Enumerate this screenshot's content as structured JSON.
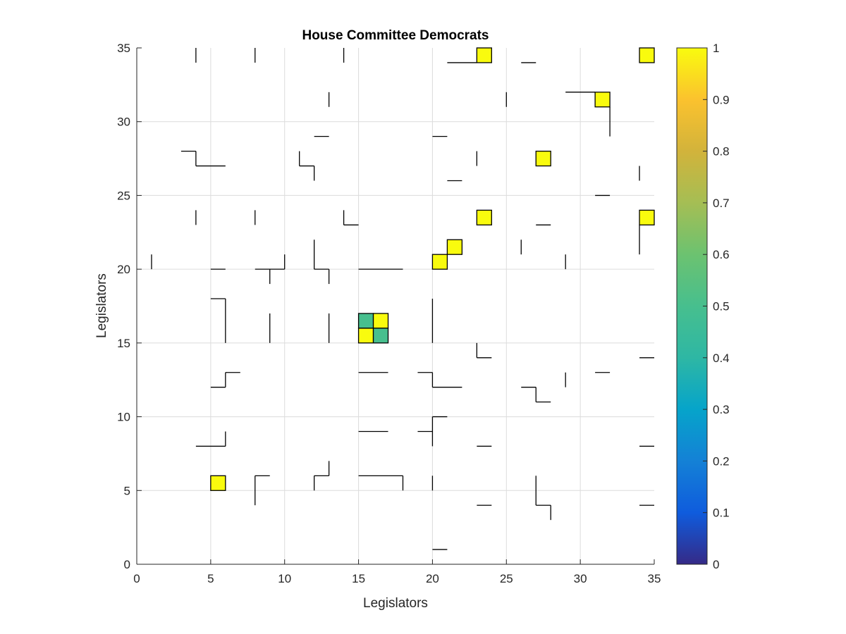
{
  "chart_data": {
    "type": "heatmap",
    "title": "House Committee Democrats",
    "xlabel": "Legislators",
    "ylabel": "Legislators",
    "xlim": [
      0,
      35
    ],
    "ylim": [
      0,
      35
    ],
    "x_ticks": [
      0,
      5,
      10,
      15,
      20,
      25,
      30,
      35
    ],
    "y_ticks": [
      0,
      5,
      10,
      15,
      20,
      25,
      30,
      35
    ],
    "grid": true,
    "colorbar": {
      "min": 0,
      "max": 1,
      "ticks": [
        0,
        0.1,
        0.2,
        0.3,
        0.4,
        0.5,
        0.6,
        0.7,
        0.8,
        0.9,
        1
      ],
      "colormap": "parula"
    },
    "cells": [
      {
        "x": 23,
        "y": 34,
        "value": 1
      },
      {
        "x": 34,
        "y": 34,
        "value": 1
      },
      {
        "x": 31,
        "y": 31,
        "value": 1
      },
      {
        "x": 27,
        "y": 27,
        "value": 1
      },
      {
        "x": 23,
        "y": 23,
        "value": 1
      },
      {
        "x": 34,
        "y": 23,
        "value": 1
      },
      {
        "x": 21,
        "y": 21,
        "value": 1
      },
      {
        "x": 20,
        "y": 20,
        "value": 1
      },
      {
        "x": 15,
        "y": 16,
        "value": 0.5
      },
      {
        "x": 16,
        "y": 16,
        "value": 1
      },
      {
        "x": 15,
        "y": 15,
        "value": 1
      },
      {
        "x": 16,
        "y": 15,
        "value": 0.5
      },
      {
        "x": 5,
        "y": 5,
        "value": 1
      }
    ],
    "zero_value_edges": [
      [
        [
          4,
          34
        ],
        [
          4,
          35
        ]
      ],
      [
        [
          8,
          34
        ],
        [
          8,
          35
        ]
      ],
      [
        [
          14,
          34
        ],
        [
          14,
          35
        ]
      ],
      [
        [
          21,
          34
        ],
        [
          23,
          34
        ]
      ],
      [
        [
          26,
          34
        ],
        [
          27,
          34
        ]
      ],
      [
        [
          13,
          31
        ],
        [
          13,
          32
        ]
      ],
      [
        [
          25,
          31
        ],
        [
          25,
          32
        ]
      ],
      [
        [
          29,
          32
        ],
        [
          31,
          32
        ]
      ],
      [
        [
          32,
          29
        ],
        [
          32,
          31
        ]
      ],
      [
        [
          12,
          29
        ],
        [
          13,
          29
        ]
      ],
      [
        [
          20,
          29
        ],
        [
          21,
          29
        ]
      ],
      [
        [
          3,
          28
        ],
        [
          4,
          28
        ]
      ],
      [
        [
          4,
          27
        ],
        [
          4,
          28
        ]
      ],
      [
        [
          4,
          27
        ],
        [
          6,
          27
        ]
      ],
      [
        [
          11,
          27
        ],
        [
          11,
          28
        ]
      ],
      [
        [
          11,
          27
        ],
        [
          12,
          27
        ]
      ],
      [
        [
          12,
          26
        ],
        [
          12,
          27
        ]
      ],
      [
        [
          23,
          27
        ],
        [
          23,
          28
        ]
      ],
      [
        [
          21,
          26
        ],
        [
          22,
          26
        ]
      ],
      [
        [
          34,
          26
        ],
        [
          34,
          27
        ]
      ],
      [
        [
          31,
          25
        ],
        [
          32,
          25
        ]
      ],
      [
        [
          4,
          23
        ],
        [
          4,
          24
        ]
      ],
      [
        [
          8,
          23
        ],
        [
          8,
          24
        ]
      ],
      [
        [
          14,
          23
        ],
        [
          14,
          24
        ]
      ],
      [
        [
          14,
          23
        ],
        [
          15,
          23
        ]
      ],
      [
        [
          27,
          23
        ],
        [
          28,
          23
        ]
      ],
      [
        [
          34,
          21
        ],
        [
          34,
          23
        ]
      ],
      [
        [
          26,
          21
        ],
        [
          26,
          22
        ]
      ],
      [
        [
          1,
          20
        ],
        [
          1,
          21
        ]
      ],
      [
        [
          5,
          20
        ],
        [
          6,
          20
        ]
      ],
      [
        [
          8,
          20
        ],
        [
          10,
          20
        ]
      ],
      [
        [
          10,
          20
        ],
        [
          10,
          21
        ]
      ],
      [
        [
          9,
          19
        ],
        [
          9,
          20
        ]
      ],
      [
        [
          12,
          20
        ],
        [
          12,
          22
        ]
      ],
      [
        [
          12,
          20
        ],
        [
          13,
          20
        ]
      ],
      [
        [
          13,
          19
        ],
        [
          13,
          20
        ]
      ],
      [
        [
          15,
          20
        ],
        [
          18,
          20
        ]
      ],
      [
        [
          29,
          20
        ],
        [
          29,
          21
        ]
      ],
      [
        [
          5,
          18
        ],
        [
          6,
          18
        ]
      ],
      [
        [
          6,
          15
        ],
        [
          6,
          18
        ]
      ],
      [
        [
          9,
          15
        ],
        [
          9,
          17
        ]
      ],
      [
        [
          13,
          15
        ],
        [
          13,
          17
        ]
      ],
      [
        [
          20,
          15
        ],
        [
          20,
          18
        ]
      ],
      [
        [
          23,
          14
        ],
        [
          23,
          15
        ]
      ],
      [
        [
          23,
          14
        ],
        [
          24,
          14
        ]
      ],
      [
        [
          34,
          14
        ],
        [
          35,
          14
        ]
      ],
      [
        [
          5,
          12
        ],
        [
          6,
          12
        ]
      ],
      [
        [
          6,
          12
        ],
        [
          6,
          13
        ]
      ],
      [
        [
          6,
          13
        ],
        [
          7,
          13
        ]
      ],
      [
        [
          15,
          13
        ],
        [
          17,
          13
        ]
      ],
      [
        [
          19,
          13
        ],
        [
          20,
          13
        ]
      ],
      [
        [
          20,
          12
        ],
        [
          20,
          13
        ]
      ],
      [
        [
          20,
          12
        ],
        [
          22,
          12
        ]
      ],
      [
        [
          26,
          12
        ],
        [
          27,
          12
        ]
      ],
      [
        [
          27,
          11
        ],
        [
          27,
          12
        ]
      ],
      [
        [
          27,
          11
        ],
        [
          28,
          11
        ]
      ],
      [
        [
          29,
          12
        ],
        [
          29,
          13
        ]
      ],
      [
        [
          31,
          13
        ],
        [
          32,
          13
        ]
      ],
      [
        [
          15,
          9
        ],
        [
          17,
          9
        ]
      ],
      [
        [
          19,
          9
        ],
        [
          20,
          9
        ]
      ],
      [
        [
          20,
          8
        ],
        [
          20,
          10
        ]
      ],
      [
        [
          20,
          10
        ],
        [
          21,
          10
        ]
      ],
      [
        [
          4,
          8
        ],
        [
          6,
          8
        ]
      ],
      [
        [
          6,
          8
        ],
        [
          6,
          9
        ]
      ],
      [
        [
          23,
          8
        ],
        [
          24,
          8
        ]
      ],
      [
        [
          34,
          8
        ],
        [
          35,
          8
        ]
      ],
      [
        [
          8,
          4
        ],
        [
          8,
          6
        ]
      ],
      [
        [
          8,
          6
        ],
        [
          9,
          6
        ]
      ],
      [
        [
          12,
          5
        ],
        [
          12,
          6
        ]
      ],
      [
        [
          12,
          6
        ],
        [
          13,
          6
        ]
      ],
      [
        [
          13,
          6
        ],
        [
          13,
          7
        ]
      ],
      [
        [
          15,
          6
        ],
        [
          18,
          6
        ]
      ],
      [
        [
          18,
          5
        ],
        [
          18,
          6
        ]
      ],
      [
        [
          20,
          5
        ],
        [
          20,
          6
        ]
      ],
      [
        [
          27,
          4
        ],
        [
          27,
          6
        ]
      ],
      [
        [
          27,
          4
        ],
        [
          28,
          4
        ]
      ],
      [
        [
          28,
          3
        ],
        [
          28,
          4
        ]
      ],
      [
        [
          23,
          4
        ],
        [
          24,
          4
        ]
      ],
      [
        [
          34,
          4
        ],
        [
          35,
          4
        ]
      ],
      [
        [
          20,
          1
        ],
        [
          21,
          1
        ]
      ]
    ]
  }
}
